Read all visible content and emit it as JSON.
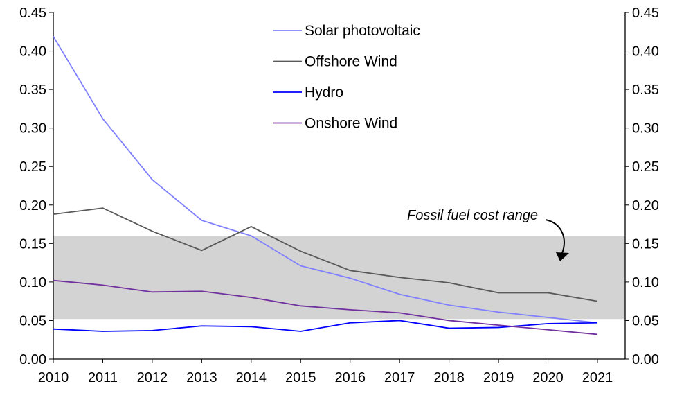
{
  "chart_data": {
    "type": "line",
    "title": "",
    "xlabel": "",
    "ylabel": "",
    "x": [
      2010,
      2011,
      2012,
      2013,
      2014,
      2015,
      2016,
      2017,
      2018,
      2019,
      2020,
      2021
    ],
    "ylim": [
      0,
      0.45
    ],
    "yticks": [
      "0.00",
      "0.05",
      "0.10",
      "0.15",
      "0.20",
      "0.25",
      "0.30",
      "0.35",
      "0.40",
      "0.45"
    ],
    "legend_position": "top-center",
    "grid": false,
    "series": [
      {
        "name": "Solar photovoltaic",
        "color": "#8080ff",
        "values": [
          0.419,
          0.312,
          0.233,
          0.18,
          0.16,
          0.121,
          0.105,
          0.084,
          0.07,
          0.061,
          0.054,
          0.047
        ]
      },
      {
        "name": "Offshore Wind",
        "color": "#595959",
        "values": [
          0.188,
          0.196,
          0.166,
          0.141,
          0.172,
          0.14,
          0.115,
          0.106,
          0.099,
          0.086,
          0.086,
          0.075
        ]
      },
      {
        "name": "Hydro",
        "color": "#0000ff",
        "values": [
          0.039,
          0.036,
          0.037,
          0.043,
          0.042,
          0.036,
          0.047,
          0.05,
          0.04,
          0.041,
          0.046,
          0.047
        ]
      },
      {
        "name": "Onshore Wind",
        "color": "#7030a0",
        "values": [
          0.102,
          0.096,
          0.087,
          0.088,
          0.08,
          0.069,
          0.064,
          0.06,
          0.05,
          0.044,
          0.038,
          0.032
        ]
      }
    ],
    "band": {
      "label": "Fossil fuel cost range",
      "range": [
        0.052,
        0.16
      ],
      "color": "#d3d3d3"
    }
  }
}
